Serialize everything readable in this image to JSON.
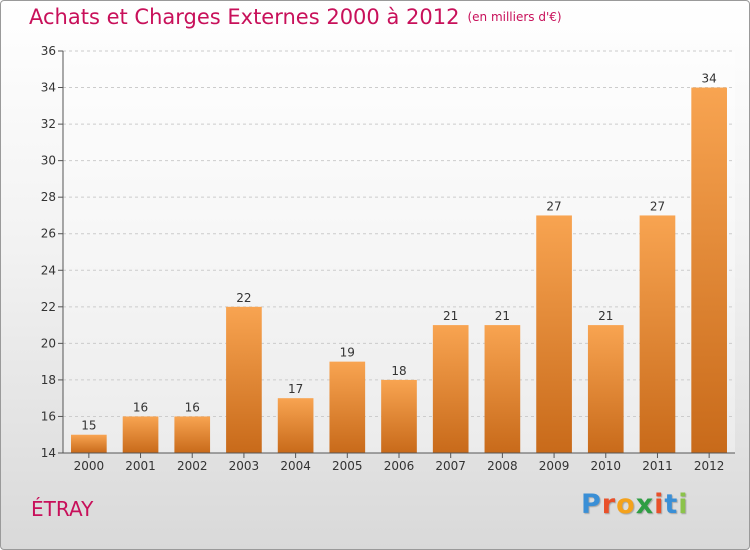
{
  "header": {
    "title": "Achats et Charges Externes 2000 à 2012",
    "unit": "(en milliers d'€)"
  },
  "footer": {
    "commune": "ÉTRAY",
    "logo": {
      "letters": [
        "P",
        "r",
        "o",
        "x",
        "i",
        "t",
        "i"
      ],
      "colors": [
        "#3a8fd6",
        "#e8502a",
        "#f4a21c",
        "#2f9e44",
        "#e8502a",
        "#3a8fd6",
        "#8bc34a"
      ]
    }
  },
  "colors": {
    "bar_top": "#f8a451",
    "bar_bottom": "#c86a1a",
    "axis": "#555555",
    "grid": "#cccccc",
    "title": "#c8105a"
  },
  "chart_data": {
    "type": "bar",
    "title": "Achats et Charges Externes 2000 à 2012",
    "subtitle": "(en milliers d'€)",
    "xlabel": "",
    "ylabel": "",
    "categories": [
      "2000",
      "2001",
      "2002",
      "2003",
      "2004",
      "2005",
      "2006",
      "2007",
      "2008",
      "2009",
      "2010",
      "2011",
      "2012"
    ],
    "values": [
      15,
      16,
      16,
      22,
      17,
      19,
      18,
      21,
      21,
      27,
      21,
      27,
      34
    ],
    "ylim": [
      14,
      36
    ],
    "yticks": [
      14,
      16,
      18,
      20,
      22,
      24,
      26,
      28,
      30,
      32,
      34,
      36
    ],
    "grid": true,
    "legend": "none"
  }
}
